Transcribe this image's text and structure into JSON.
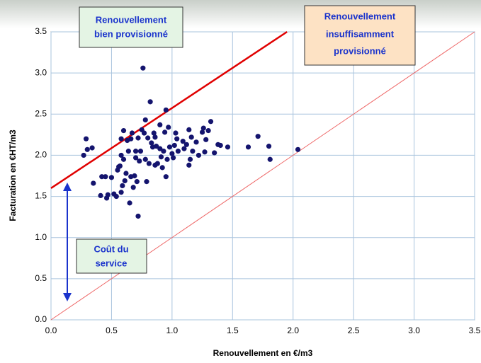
{
  "chart_data": {
    "type": "scatter",
    "x_label": "Renouvellement en €/m3",
    "y_label": "Facturation en €HT/m3",
    "xlim": [
      0,
      3.5
    ],
    "ylim": [
      0,
      3.5
    ],
    "xticks": [
      {
        "value": 0,
        "label": "0.0"
      },
      {
        "value": 0.5,
        "label": "0.5"
      },
      {
        "value": 1,
        "label": "1.0"
      },
      {
        "value": 1.5,
        "label": "1.5"
      },
      {
        "value": 2,
        "label": "2.0"
      },
      {
        "value": 2.5,
        "label": "2.5"
      },
      {
        "value": 3,
        "label": "3.0"
      },
      {
        "value": 3.5,
        "label": "3.5"
      }
    ],
    "yticks": [
      {
        "value": 0,
        "label": "0.0"
      },
      {
        "value": 0.5,
        "label": "0.5"
      },
      {
        "value": 1,
        "label": "1.0"
      },
      {
        "value": 1.5,
        "label": "1.5"
      },
      {
        "value": 2,
        "label": "2.0"
      },
      {
        "value": 2.5,
        "label": "2.5"
      },
      {
        "value": 3,
        "label": "3.0"
      },
      {
        "value": 3.5,
        "label": "3.5"
      }
    ],
    "grid": true,
    "color": "#14146e",
    "x": [
      0.27,
      0.29,
      0.3,
      0.34,
      0.35,
      0.41,
      0.42,
      0.45,
      0.46,
      0.47,
      0.5,
      0.52,
      0.54,
      0.55,
      0.56,
      0.57,
      0.58,
      0.58,
      0.58,
      0.59,
      0.6,
      0.6,
      0.61,
      0.62,
      0.63,
      0.64,
      0.65,
      0.66,
      0.66,
      0.67,
      0.68,
      0.69,
      0.7,
      0.7,
      0.71,
      0.72,
      0.72,
      0.73,
      0.74,
      0.75,
      0.76,
      0.77,
      0.78,
      0.78,
      0.79,
      0.8,
      0.81,
      0.82,
      0.83,
      0.84,
      0.85,
      0.86,
      0.86,
      0.87,
      0.88,
      0.9,
      0.9,
      0.91,
      0.92,
      0.93,
      0.94,
      0.95,
      0.95,
      0.96,
      0.97,
      0.98,
      1.0,
      1.01,
      1.02,
      1.03,
      1.04,
      1.05,
      1.09,
      1.1,
      1.12,
      1.14,
      1.14,
      1.15,
      1.16,
      1.17,
      1.2,
      1.22,
      1.25,
      1.26,
      1.27,
      1.28,
      1.3,
      1.32,
      1.35,
      1.38,
      1.4,
      1.46,
      1.63,
      1.71,
      1.8,
      1.81,
      2.04
    ],
    "values": [
      2.0,
      2.2,
      2.07,
      2.09,
      1.66,
      1.51,
      1.74,
      1.74,
      1.48,
      1.52,
      1.73,
      1.53,
      1.5,
      1.82,
      1.86,
      1.87,
      1.55,
      2.0,
      2.2,
      1.63,
      2.3,
      1.95,
      1.69,
      1.78,
      2.18,
      2.05,
      1.42,
      1.74,
      2.2,
      2.27,
      1.61,
      1.75,
      2.05,
      1.97,
      1.68,
      1.26,
      2.21,
      1.93,
      2.05,
      2.31,
      3.06,
      2.27,
      2.43,
      1.95,
      1.68,
      2.21,
      1.9,
      2.65,
      2.15,
      2.1,
      2.27,
      1.88,
      2.22,
      2.11,
      1.9,
      2.37,
      2.08,
      1.98,
      1.85,
      2.05,
      2.28,
      2.55,
      1.74,
      1.95,
      2.34,
      2.1,
      2.02,
      1.97,
      2.12,
      2.27,
      2.2,
      2.05,
      2.17,
      2.08,
      2.13,
      2.31,
      1.88,
      1.95,
      2.22,
      2.05,
      2.16,
      2.0,
      2.28,
      2.33,
      2.04,
      2.19,
      2.3,
      2.41,
      2.03,
      2.13,
      2.12,
      2.1,
      2.1,
      2.23,
      2.11,
      1.95,
      2.07
    ],
    "reference_lines": [
      {
        "x": [
          0,
          1.95
        ],
        "y": [
          1.6,
          3.5
        ],
        "color": "#e00000"
      },
      {
        "x": [
          0,
          3.5
        ],
        "y": [
          0,
          3.5
        ],
        "color": "#ee6666"
      }
    ],
    "annotations": [
      {
        "lines": [
          "Renouvellement",
          "bien provisionné"
        ]
      },
      {
        "lines": [
          "Renouvellement",
          "insuffisamment",
          "provisionné"
        ]
      },
      {
        "lines": [
          "Coût du",
          "service"
        ]
      }
    ]
  }
}
